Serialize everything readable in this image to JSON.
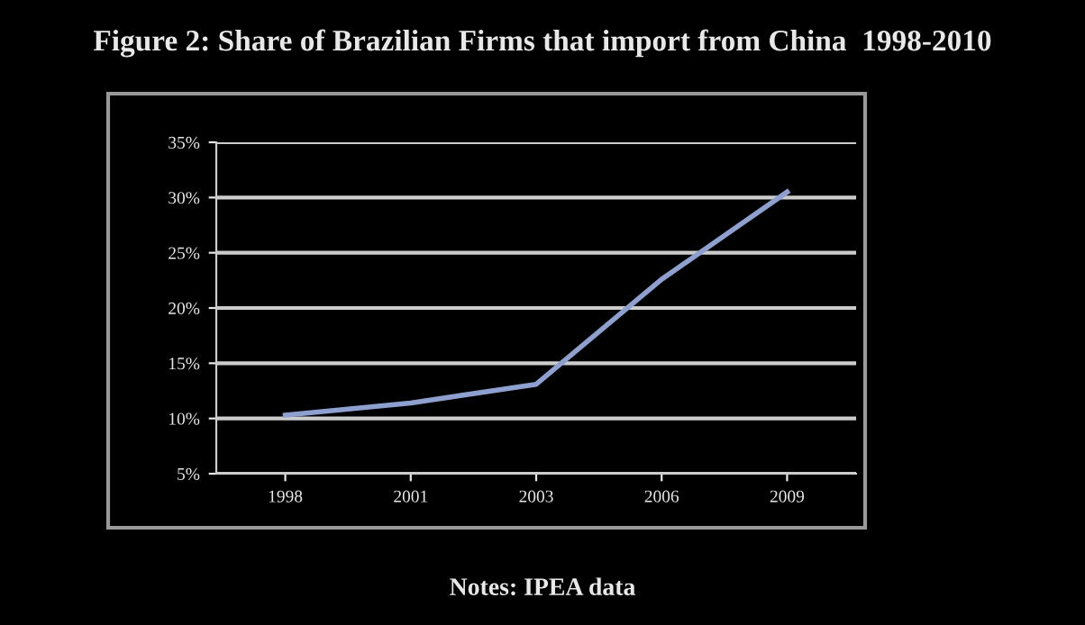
{
  "chart_data": {
    "type": "line",
    "title": "Figure 2: Share of Brazilian Firms that import from China  1998-2010",
    "categories": [
      "1998",
      "2001",
      "2003",
      "2006",
      "2009"
    ],
    "series": [
      {
        "color": "#8da0d0",
        "values": [
          10.3,
          11.4,
          13.1,
          22.6,
          30.5
        ]
      }
    ],
    "ylim": [
      5,
      35
    ],
    "yticks": [
      {
        "value": 5,
        "label": "5%"
      },
      {
        "value": 10,
        "label": "10%"
      },
      {
        "value": 15,
        "label": "15%"
      },
      {
        "value": 20,
        "label": "20%"
      },
      {
        "value": 25,
        "label": "25%"
      },
      {
        "value": 30,
        "label": "30%"
      },
      {
        "value": 35,
        "label": "35%"
      }
    ],
    "grid": "y",
    "legend": false,
    "marker": "none",
    "line_style": "solid",
    "annotations": [
      "Notes: IPEA data"
    ]
  }
}
